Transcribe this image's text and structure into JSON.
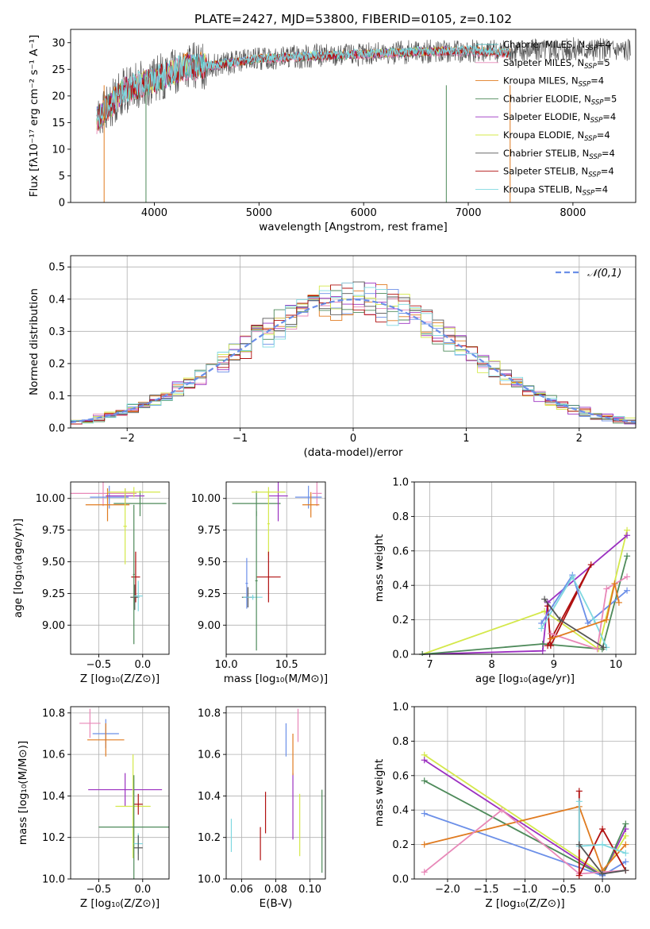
{
  "colors": [
    "#5bb7b8",
    "#6b8fe8",
    "#e07b20",
    "#4e8a5a",
    "#9b30c0",
    "#d4e84a",
    "#555555",
    "#b01010",
    "#7fd8e0",
    "#e888b8"
  ],
  "chart_data": [
    {
      "id": "spectrum",
      "type": "line",
      "title": "PLATE=2427, MJD=53800, FIBERID=0105, z=0.102",
      "xlabel": "wavelength [Angstrom, rest frame]",
      "ylabel": "Flux [fλ10⁻¹⁷ erg cm⁻² s⁻¹ A⁻¹]",
      "xlim": [
        3200,
        8600
      ],
      "ylim": [
        0,
        32.5
      ],
      "xticks": [
        4000,
        5000,
        6000,
        7000,
        8000
      ],
      "yticks": [
        0,
        5,
        10,
        15,
        20,
        25,
        30
      ],
      "grid": false,
      "legend_position": "top-right",
      "series": [
        {
          "name": "Chabrier MILES, N_SSP=4",
          "color_index": 0,
          "x": [
            3450,
            3700,
            4000,
            4300,
            4600,
            5000,
            5500,
            6000,
            6500,
            7000,
            7400
          ],
          "y": [
            15.5,
            21,
            23,
            25.5,
            25.8,
            27,
            27.5,
            27.8,
            28.3,
            28.5,
            28
          ]
        },
        {
          "name": "Salpeter MILES, N_SSP=5",
          "color_index": 9,
          "x": [
            3450,
            3700,
            4000,
            4300,
            4600,
            5000,
            5500,
            6000,
            6500,
            7000,
            7400
          ],
          "y": [
            15.3,
            20.8,
            22.8,
            25.3,
            25.6,
            26.8,
            27.3,
            27.6,
            28.1,
            28.3,
            27.8
          ]
        },
        {
          "name": "Kroupa MILES, N_SSP=4",
          "color_index": 2,
          "x": [
            3450,
            3700,
            4000,
            4300,
            4600,
            5000,
            5500,
            6000,
            6500,
            7000,
            7400
          ],
          "y": [
            15.6,
            21.1,
            23.1,
            25.6,
            25.9,
            27.1,
            27.6,
            27.9,
            28.4,
            28.6,
            28.1
          ]
        },
        {
          "name": "Chabrier ELODIE, N_SSP=5",
          "color_index": 3,
          "x": [
            3450,
            3700,
            4000,
            4300,
            4600,
            5000,
            5500,
            6000,
            6500,
            6800
          ],
          "y": [
            15.4,
            20.9,
            22.9,
            25.4,
            25.7,
            26.9,
            27.4,
            27.7,
            28.2,
            28.4
          ]
        },
        {
          "name": "Salpeter ELODIE, N_SSP=4",
          "color_index": 4,
          "x": [
            3450,
            3700,
            4000,
            4300,
            4600,
            5000,
            5500,
            6000,
            6500,
            6800
          ],
          "y": [
            15.5,
            21,
            23,
            25.5,
            25.8,
            27,
            27.5,
            27.8,
            28.3,
            28.5
          ]
        },
        {
          "name": "Kroupa ELODIE, N_SSP=4",
          "color_index": 5,
          "x": [
            3450,
            3700,
            4000,
            4300,
            4600,
            5000,
            5500,
            6000,
            6500,
            6800
          ],
          "y": [
            15.5,
            21,
            23,
            25.5,
            25.8,
            27,
            27.5,
            27.8,
            28.3,
            28.5
          ]
        },
        {
          "name": "Chabrier STELIB, N_SSP=4",
          "color_index": 6,
          "x": [
            3450,
            3700,
            4000,
            4300,
            4600,
            5000,
            5500,
            6000,
            6500,
            7000,
            7500,
            8000,
            8550
          ],
          "y": [
            15.5,
            21,
            23,
            25.5,
            25.8,
            27,
            27.5,
            27.8,
            28.3,
            28.5,
            28.5,
            28.8,
            28.7
          ]
        },
        {
          "name": "Salpeter STELIB, N_SSP=4",
          "color_index": 7,
          "x": [
            3450,
            3700,
            4000,
            4300,
            4600,
            5000,
            5500,
            6000,
            6500,
            7000,
            7400
          ],
          "y": [
            15.5,
            21,
            23,
            25.5,
            25.8,
            27,
            27.5,
            27.8,
            28.3,
            28.5,
            28
          ]
        },
        {
          "name": "Kroupa STELIB, N_SSP=4",
          "color_index": 8,
          "x": [
            3450,
            3700,
            4000,
            4300,
            4600,
            5000,
            5500,
            6000,
            6500,
            7000,
            7400
          ],
          "y": [
            15.7,
            21.2,
            23.2,
            25.7,
            26,
            27.2,
            27.7,
            28,
            28.5,
            28.7,
            28.2
          ]
        }
      ]
    },
    {
      "id": "residuals",
      "type": "line",
      "xlabel": "(data-model)/error",
      "ylabel": "Normed distribution",
      "xlim": [
        -2.5,
        2.5
      ],
      "ylim": [
        0,
        0.535
      ],
      "xticks": [
        -2,
        -1,
        0,
        1,
        2
      ],
      "yticks": [
        0.0,
        0.1,
        0.2,
        0.3,
        0.4,
        0.5
      ],
      "grid": true,
      "legend_position": "top-right",
      "legend": [
        {
          "name": "𝒩(0,1)",
          "color_index": 1,
          "style": "dashed"
        }
      ],
      "reference_curve": {
        "type": "gaussian",
        "mean": 0,
        "sigma": 1
      }
    },
    {
      "id": "age-vs-Z",
      "type": "scatter",
      "xlabel": "Z [log₁₀(Z/Z⊙)]",
      "ylabel": "age  [log₁₀(age/yr)]",
      "xlim": [
        -0.82,
        0.3
      ],
      "ylim": [
        8.77,
        10.13
      ],
      "xticks": [
        -0.5,
        0.0
      ],
      "yticks": [
        9.0,
        9.25,
        9.5,
        9.75,
        10.0
      ],
      "grid": true,
      "points": [
        {
          "x": -0.45,
          "y": 10.04,
          "xerr": 0.38,
          "yerr": 0.1,
          "color_index": 9
        },
        {
          "x": -0.38,
          "y": 10.01,
          "xerr": 0.22,
          "yerr": 0.09,
          "color_index": 1
        },
        {
          "x": -0.4,
          "y": 9.95,
          "xerr": 0.25,
          "yerr": 0.13,
          "color_index": 2
        },
        {
          "x": -0.03,
          "y": 9.96,
          "xerr": 0.3,
          "yerr": 0.1,
          "color_index": 3
        },
        {
          "x": -0.2,
          "y": 10.02,
          "xerr": 0.22,
          "yerr": 0.06,
          "color_index": 4
        },
        {
          "x": -0.1,
          "y": 10.05,
          "xerr": 0.3,
          "yerr": 0.04,
          "color_index": 5
        },
        {
          "x": -0.2,
          "y": 9.78,
          "xerr": 0.02,
          "yerr": 0.3,
          "color_index": 5
        },
        {
          "x": -0.08,
          "y": 9.38,
          "xerr": 0.05,
          "yerr": 0.2,
          "color_index": 7
        },
        {
          "x": -0.09,
          "y": 9.22,
          "xerr": 0.05,
          "yerr": 0.1,
          "color_index": 6
        },
        {
          "x": -0.05,
          "y": 9.23,
          "xerr": 0.05,
          "yerr": 0.12,
          "color_index": 8
        },
        {
          "x": -0.1,
          "y": 9.4,
          "xerr": 0.01,
          "yerr": 0.55,
          "color_index": 3
        }
      ]
    },
    {
      "id": "age-vs-mass",
      "type": "scatter",
      "xlabel": "mass [log₁₀(M/M⊙)]",
      "ylabel": "",
      "xlim": [
        10.0,
        10.82
      ],
      "ylim": [
        8.77,
        10.13
      ],
      "xticks": [
        10.0,
        10.5
      ],
      "yticks": [
        9.0,
        9.25,
        9.5,
        9.75,
        10.0
      ],
      "grid": true,
      "points": [
        {
          "x": 10.75,
          "y": 10.04,
          "xerr": 0.04,
          "yerr": 0.1,
          "color_index": 9
        },
        {
          "x": 10.68,
          "y": 10.01,
          "xerr": 0.11,
          "yerr": 0.09,
          "color_index": 1
        },
        {
          "x": 10.7,
          "y": 9.95,
          "xerr": 0.07,
          "yerr": 0.1,
          "color_index": 2
        },
        {
          "x": 10.25,
          "y": 9.96,
          "xerr": 0.2,
          "yerr": 0.1,
          "color_index": 3
        },
        {
          "x": 10.43,
          "y": 10.02,
          "xerr": 0.08,
          "yerr": 0.2,
          "color_index": 4
        },
        {
          "x": 10.35,
          "y": 10.05,
          "xerr": 0.14,
          "yerr": 0.04,
          "color_index": 5
        },
        {
          "x": 10.35,
          "y": 9.8,
          "xerr": 0.01,
          "yerr": 0.25,
          "color_index": 5
        },
        {
          "x": 10.35,
          "y": 9.38,
          "xerr": 0.1,
          "yerr": 0.2,
          "color_index": 7
        },
        {
          "x": 10.18,
          "y": 9.22,
          "xerr": 0.05,
          "yerr": 0.08,
          "color_index": 6
        },
        {
          "x": 10.22,
          "y": 9.22,
          "xerr": 0.08,
          "yerr": 0.02,
          "color_index": 8
        },
        {
          "x": 10.25,
          "y": 9.35,
          "xerr": 0.01,
          "yerr": 0.55,
          "color_index": 3
        },
        {
          "x": 10.17,
          "y": 9.33,
          "xerr": 0.01,
          "yerr": 0.2,
          "color_index": 1
        }
      ]
    },
    {
      "id": "weight-vs-age",
      "type": "line",
      "xlabel": "age  [log₁₀(age/yr)]",
      "ylabel": "mass weight",
      "xlim": [
        6.75,
        10.32
      ],
      "ylim": [
        0.0,
        1.0
      ],
      "xticks": [
        7,
        8,
        9,
        10
      ],
      "yticks": [
        0.0,
        0.2,
        0.4,
        0.6,
        0.8,
        1.0
      ],
      "grid": true,
      "series": [
        {
          "color_index": 5,
          "x": [
            6.88,
            8.85,
            9.72,
            10.18
          ],
          "y": [
            0.0,
            0.25,
            0.03,
            0.72
          ]
        },
        {
          "color_index": 4,
          "x": [
            6.88,
            8.82,
            8.9,
            10.18
          ],
          "y": [
            0.0,
            0.02,
            0.3,
            0.69
          ]
        },
        {
          "color_index": 3,
          "x": [
            6.88,
            8.82,
            9.78,
            10.18
          ],
          "y": [
            0.0,
            0.06,
            0.03,
            0.57
          ]
        },
        {
          "color_index": 7,
          "x": [
            8.9,
            9.6,
            8.95,
            8.9
          ],
          "y": [
            0.05,
            0.52,
            0.05,
            0.28
          ]
        },
        {
          "color_index": 1,
          "x": [
            8.8,
            9.3,
            9.55,
            10.18
          ],
          "y": [
            0.18,
            0.46,
            0.18,
            0.37
          ]
        },
        {
          "color_index": 8,
          "x": [
            8.8,
            9.3,
            9.65,
            9.85
          ],
          "y": [
            0.15,
            0.45,
            0.2,
            0.04
          ]
        },
        {
          "color_index": 9,
          "x": [
            8.95,
            9.7,
            9.85,
            10.18
          ],
          "y": [
            0.12,
            0.03,
            0.38,
            0.45
          ]
        },
        {
          "color_index": 2,
          "x": [
            8.95,
            9.85,
            9.98,
            10.05
          ],
          "y": [
            0.09,
            0.2,
            0.41,
            0.3
          ]
        },
        {
          "color_index": 6,
          "x": [
            8.85,
            9.1,
            9.8
          ],
          "y": [
            0.32,
            0.2,
            0.04
          ]
        }
      ]
    },
    {
      "id": "mass-vs-Z",
      "type": "scatter",
      "xlabel": "Z [log₁₀(Z/Z⊙)]",
      "ylabel": "mass [log₁₀(M/M⊙)]",
      "xlim": [
        -0.82,
        0.3
      ],
      "ylim": [
        10.0,
        10.83
      ],
      "xticks": [
        -0.5,
        0.0
      ],
      "yticks": [
        10.0,
        10.2,
        10.4,
        10.6,
        10.8
      ],
      "grid": true,
      "points": [
        {
          "x": -0.6,
          "y": 10.75,
          "xerr": 0.12,
          "yerr": 0.07,
          "color_index": 9
        },
        {
          "x": -0.42,
          "y": 10.7,
          "xerr": 0.15,
          "yerr": 0.07,
          "color_index": 1
        },
        {
          "x": -0.42,
          "y": 10.67,
          "xerr": 0.21,
          "yerr": 0.08,
          "color_index": 2
        },
        {
          "x": -0.2,
          "y": 10.43,
          "xerr": 0.42,
          "yerr": 0.08,
          "color_index": 4
        },
        {
          "x": -0.11,
          "y": 10.35,
          "xerr": 0.2,
          "yerr": 0.25,
          "color_index": 5
        },
        {
          "x": -0.05,
          "y": 10.36,
          "xerr": 0.05,
          "yerr": 0.05,
          "color_index": 7
        },
        {
          "x": -0.1,
          "y": 10.25,
          "xerr": 0.4,
          "yerr": 0.25,
          "color_index": 3
        },
        {
          "x": -0.05,
          "y": 10.17,
          "xerr": 0.05,
          "yerr": 0.05,
          "color_index": 8
        },
        {
          "x": -0.05,
          "y": 10.15,
          "xerr": 0.05,
          "yerr": 0.06,
          "color_index": 6
        }
      ]
    },
    {
      "id": "mass-vs-EBV",
      "type": "scatter",
      "xlabel": "E(B-V)",
      "ylabel": "",
      "xlim": [
        0.051,
        0.109
      ],
      "ylim": [
        10.0,
        10.83
      ],
      "xticks": [
        0.06,
        0.08,
        0.1
      ],
      "yticks": [
        10.0,
        10.2,
        10.4,
        10.6,
        10.8
      ],
      "grid": true,
      "points": [
        {
          "x": 0.054,
          "y": 10.21,
          "xerr": 0.0,
          "yerr": 0.08,
          "color_index": 8
        },
        {
          "x": 0.071,
          "y": 10.17,
          "xerr": 0.0,
          "yerr": 0.08,
          "color_index": 7
        },
        {
          "x": 0.074,
          "y": 10.32,
          "xerr": 0.0,
          "yerr": 0.1,
          "color_index": 7
        },
        {
          "x": 0.086,
          "y": 10.67,
          "xerr": 0.0,
          "yerr": 0.08,
          "color_index": 1
        },
        {
          "x": 0.09,
          "y": 10.35,
          "xerr": 0.0,
          "yerr": 0.16,
          "color_index": 4
        },
        {
          "x": 0.09,
          "y": 10.6,
          "xerr": 0.0,
          "yerr": 0.1,
          "color_index": 2
        },
        {
          "x": 0.093,
          "y": 10.74,
          "xerr": 0.0,
          "yerr": 0.08,
          "color_index": 9
        },
        {
          "x": 0.094,
          "y": 10.26,
          "xerr": 0.0,
          "yerr": 0.15,
          "color_index": 5
        },
        {
          "x": 0.107,
          "y": 10.23,
          "xerr": 0.0,
          "yerr": 0.2,
          "color_index": 3
        }
      ]
    },
    {
      "id": "weight-vs-Z",
      "type": "line",
      "xlabel": "Z [log₁₀(Z/Z⊙)]",
      "ylabel": "mass weight",
      "xlim": [
        -2.43,
        0.43
      ],
      "ylim": [
        0.0,
        1.0
      ],
      "xticks": [
        -2.0,
        -1.5,
        -1.0,
        -0.5,
        0.0
      ],
      "yticks": [
        0.0,
        0.2,
        0.4,
        0.6,
        0.8,
        1.0
      ],
      "grid": true,
      "series": [
        {
          "color_index": 5,
          "x": [
            -2.3,
            0.0,
            0.3
          ],
          "y": [
            0.72,
            0.03,
            0.25
          ]
        },
        {
          "color_index": 4,
          "x": [
            -2.3,
            0.0,
            0.3
          ],
          "y": [
            0.69,
            0.02,
            0.29
          ]
        },
        {
          "color_index": 3,
          "x": [
            -2.3,
            0.0,
            0.3
          ],
          "y": [
            0.57,
            0.02,
            0.32
          ]
        },
        {
          "color_index": 1,
          "x": [
            -2.3,
            0.0,
            0.3
          ],
          "y": [
            0.38,
            0.02,
            0.1
          ]
        },
        {
          "color_index": 2,
          "x": [
            -2.3,
            -0.3,
            0.0,
            0.3
          ],
          "y": [
            0.2,
            0.42,
            0.05,
            0.2
          ]
        },
        {
          "color_index": 9,
          "x": [
            -2.3,
            -1.3,
            -0.3,
            0.3
          ],
          "y": [
            0.04,
            0.4,
            0.03,
            0.05
          ]
        },
        {
          "color_index": 7,
          "x": [
            -0.3,
            -0.3,
            0.0,
            0.3
          ],
          "y": [
            0.51,
            0.02,
            0.29,
            0.05
          ]
        },
        {
          "color_index": 8,
          "x": [
            -0.3,
            -0.3,
            0.0,
            0.3
          ],
          "y": [
            0.45,
            0.19,
            0.2,
            0.15
          ]
        },
        {
          "color_index": 6,
          "x": [
            -0.3,
            0.0,
            0.3
          ],
          "y": [
            0.2,
            0.03,
            0.05
          ]
        }
      ]
    }
  ]
}
